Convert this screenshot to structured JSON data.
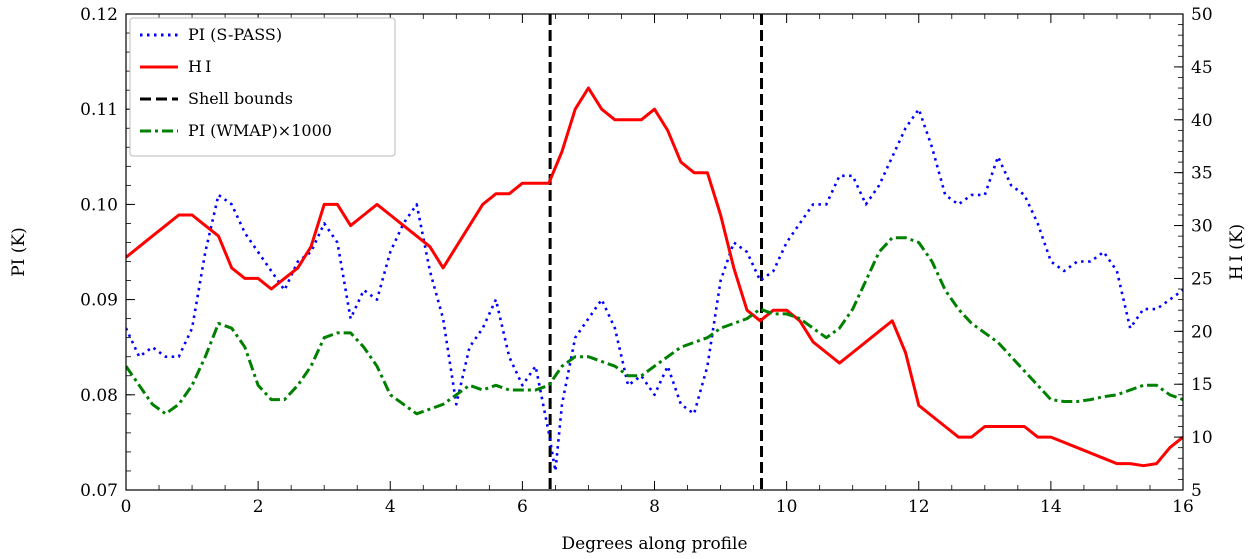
{
  "chart_data": {
    "type": "line",
    "xlabel": "Degrees along profile",
    "ylabel_left": "PI (K)",
    "ylabel_right": "H I (K)",
    "xlim": [
      0,
      16
    ],
    "ylim_left": [
      0.07,
      0.12
    ],
    "ylim_right": [
      5,
      50
    ],
    "x_ticks": [
      0,
      2,
      4,
      6,
      8,
      10,
      12,
      14,
      16
    ],
    "y_left_ticks": [
      0.07,
      0.08,
      0.09,
      0.1,
      0.11,
      0.12
    ],
    "y_left_tick_labels": [
      "0.07",
      "0.08",
      "0.09",
      "0.10",
      "0.11",
      "0.12"
    ],
    "y_right_ticks": [
      5,
      10,
      15,
      20,
      25,
      30,
      35,
      40,
      45,
      50
    ],
    "legend_placement": "top-left",
    "grid": false,
    "series": [
      {
        "name": "PI (S-PASS)",
        "axis": "left",
        "color": "#0000ff",
        "style": "dotted",
        "x": [
          0,
          0.2,
          0.4,
          0.6,
          0.8,
          1.0,
          1.2,
          1.4,
          1.6,
          1.8,
          2.0,
          2.2,
          2.4,
          2.6,
          2.8,
          3.0,
          3.2,
          3.4,
          3.6,
          3.8,
          4.0,
          4.2,
          4.4,
          4.6,
          4.8,
          5.0,
          5.2,
          5.4,
          5.6,
          5.8,
          6.0,
          6.2,
          6.4,
          6.5,
          6.6,
          6.8,
          7.0,
          7.2,
          7.4,
          7.6,
          7.8,
          8.0,
          8.2,
          8.4,
          8.6,
          8.8,
          9.0,
          9.2,
          9.4,
          9.6,
          9.8,
          10.0,
          10.2,
          10.4,
          10.6,
          10.8,
          11.0,
          11.2,
          11.4,
          11.6,
          11.8,
          12.0,
          12.2,
          12.4,
          12.6,
          12.8,
          13.0,
          13.2,
          13.4,
          13.6,
          13.8,
          14.0,
          14.2,
          14.4,
          14.6,
          14.8,
          15.0,
          15.2,
          15.4,
          15.6,
          15.8,
          16.0
        ],
        "values": [
          0.087,
          0.084,
          0.085,
          0.084,
          0.084,
          0.087,
          0.095,
          0.101,
          0.1,
          0.097,
          0.095,
          0.093,
          0.091,
          0.094,
          0.095,
          0.098,
          0.096,
          0.088,
          0.091,
          0.09,
          0.095,
          0.098,
          0.1,
          0.093,
          0.088,
          0.079,
          0.085,
          0.087,
          0.09,
          0.084,
          0.081,
          0.083,
          0.076,
          0.072,
          0.079,
          0.086,
          0.088,
          0.09,
          0.087,
          0.081,
          0.082,
          0.08,
          0.083,
          0.079,
          0.078,
          0.083,
          0.092,
          0.096,
          0.095,
          0.092,
          0.093,
          0.096,
          0.098,
          0.1,
          0.1,
          0.103,
          0.103,
          0.1,
          0.102,
          0.105,
          0.108,
          0.11,
          0.106,
          0.101,
          0.1,
          0.101,
          0.101,
          0.105,
          0.102,
          0.101,
          0.098,
          0.094,
          0.093,
          0.094,
          0.094,
          0.095,
          0.093,
          0.087,
          0.089,
          0.089,
          0.09,
          0.091
        ]
      },
      {
        "name": "H I",
        "axis": "right",
        "color": "#ff0000",
        "style": "solid",
        "x": [
          0,
          0.2,
          0.4,
          0.6,
          0.8,
          1.0,
          1.2,
          1.4,
          1.6,
          1.8,
          2.0,
          2.2,
          2.4,
          2.6,
          2.8,
          3.0,
          3.2,
          3.4,
          3.6,
          3.8,
          4.0,
          4.2,
          4.4,
          4.6,
          4.8,
          5.0,
          5.2,
          5.4,
          5.6,
          5.8,
          6.0,
          6.2,
          6.4,
          6.6,
          6.8,
          7.0,
          7.2,
          7.4,
          7.6,
          7.8,
          8.0,
          8.2,
          8.4,
          8.6,
          8.8,
          9.0,
          9.2,
          9.4,
          9.6,
          9.8,
          10.0,
          10.2,
          10.4,
          10.6,
          10.8,
          11.0,
          11.2,
          11.4,
          11.6,
          11.8,
          12.0,
          12.2,
          12.4,
          12.6,
          12.8,
          13.0,
          13.2,
          13.4,
          13.6,
          13.8,
          14.0,
          14.2,
          14.4,
          14.6,
          14.8,
          15.0,
          15.2,
          15.4,
          15.6,
          15.8,
          16.0
        ],
        "values": [
          27,
          28,
          29,
          30,
          31,
          31,
          30,
          29,
          26,
          25,
          25,
          24,
          25,
          26,
          28,
          32,
          32,
          30,
          31,
          32,
          31,
          30,
          29,
          28,
          26,
          28,
          30,
          32,
          33,
          33,
          34,
          34,
          34,
          37,
          41,
          43,
          41,
          40,
          40,
          40,
          41,
          39,
          36,
          35,
          35,
          31,
          26,
          22,
          21,
          22,
          22,
          21,
          19,
          18,
          17,
          18,
          19,
          20,
          21,
          18,
          13,
          12,
          11,
          10,
          10,
          11,
          11,
          11,
          11,
          10,
          10,
          9.5,
          9,
          8.5,
          8,
          7.5,
          7.5,
          7.3,
          7.5,
          9,
          10
        ]
      },
      {
        "name": "PI (WMAP)×1000",
        "axis": "left",
        "color": "#008000",
        "style": "dashdot",
        "x": [
          0,
          0.2,
          0.4,
          0.6,
          0.8,
          1.0,
          1.2,
          1.4,
          1.6,
          1.8,
          2.0,
          2.2,
          2.4,
          2.6,
          2.8,
          3.0,
          3.2,
          3.4,
          3.6,
          3.8,
          4.0,
          4.2,
          4.4,
          4.6,
          4.8,
          5.0,
          5.2,
          5.4,
          5.6,
          5.8,
          6.0,
          6.2,
          6.4,
          6.6,
          6.8,
          7.0,
          7.2,
          7.4,
          7.6,
          7.8,
          8.0,
          8.2,
          8.4,
          8.6,
          8.8,
          9.0,
          9.2,
          9.4,
          9.6,
          9.8,
          10.0,
          10.2,
          10.4,
          10.6,
          10.8,
          11.0,
          11.2,
          11.4,
          11.6,
          11.8,
          12.0,
          12.2,
          12.4,
          12.6,
          12.8,
          13.0,
          13.2,
          13.4,
          13.6,
          13.8,
          14.0,
          14.2,
          14.4,
          14.6,
          14.8,
          15.0,
          15.2,
          15.4,
          15.6,
          15.8,
          16.0
        ],
        "values": [
          0.083,
          0.081,
          0.079,
          0.078,
          0.079,
          0.081,
          0.084,
          0.0875,
          0.087,
          0.085,
          0.081,
          0.0795,
          0.0795,
          0.081,
          0.083,
          0.086,
          0.0865,
          0.0865,
          0.085,
          0.083,
          0.08,
          0.079,
          0.078,
          0.0785,
          0.079,
          0.08,
          0.081,
          0.0805,
          0.081,
          0.0805,
          0.0805,
          0.0805,
          0.081,
          0.083,
          0.084,
          0.084,
          0.0835,
          0.083,
          0.082,
          0.082,
          0.083,
          0.084,
          0.085,
          0.0855,
          0.086,
          0.087,
          0.0875,
          0.088,
          0.089,
          0.0885,
          0.0885,
          0.088,
          0.087,
          0.086,
          0.087,
          0.089,
          0.092,
          0.095,
          0.0965,
          0.0965,
          0.096,
          0.094,
          0.091,
          0.089,
          0.0875,
          0.0865,
          0.0855,
          0.084,
          0.0825,
          0.081,
          0.0795,
          0.0793,
          0.0793,
          0.0795,
          0.0798,
          0.08,
          0.0805,
          0.081,
          0.081,
          0.08,
          0.0795
        ]
      }
    ],
    "annotations": [
      {
        "name": "Shell bounds",
        "type": "vline",
        "x": 6.42,
        "color": "#000000",
        "style": "dashed"
      },
      {
        "name": "Shell bounds",
        "type": "vline",
        "x": 9.62,
        "color": "#000000",
        "style": "dashed"
      }
    ]
  }
}
